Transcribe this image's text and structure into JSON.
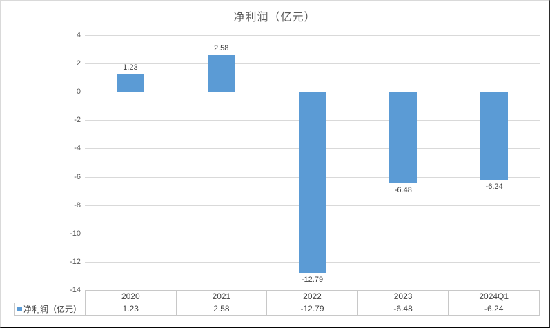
{
  "chart_data": {
    "type": "bar",
    "title": "净利润（亿元）",
    "categories": [
      "2020",
      "2021",
      "2022",
      "2023",
      "2024Q1"
    ],
    "series": [
      {
        "name": "净利润（亿元）",
        "values": [
          1.23,
          2.58,
          -12.79,
          -6.48,
          -6.24
        ],
        "color": "#5b9bd5"
      }
    ],
    "value_labels": [
      "1.23",
      "2.58",
      "-12.79",
      "-6.48",
      "-6.24"
    ],
    "xlabel": "",
    "ylabel": "",
    "ylim": [
      -14,
      4
    ],
    "ytick_step": 2,
    "ytick_labels": [
      "4",
      "2",
      "0",
      "-2",
      "-4",
      "-6",
      "-8",
      "-10",
      "-12",
      "-14"
    ],
    "grid": true,
    "legend_position": "data-table-left",
    "data_table": {
      "legend_label": "净利润（亿元）",
      "header": [
        "2020",
        "2021",
        "2022",
        "2023",
        "2024Q1"
      ],
      "rows": [
        [
          "1.23",
          "2.58",
          "-12.79",
          "-6.48",
          "-6.24"
        ]
      ]
    }
  },
  "colors": {
    "bar": "#5b9bd5",
    "gridline": "#d9d9d9",
    "zero_line": "#bfbfbf",
    "title_text": "#595959",
    "axis_text": "#595959",
    "label_text": "#404040",
    "table_border": "#c8c8c8",
    "background": "#ffffff"
  }
}
